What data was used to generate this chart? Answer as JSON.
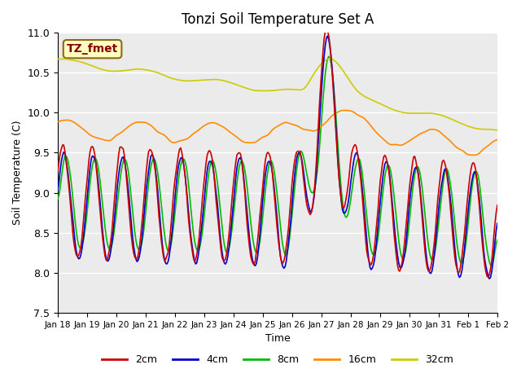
{
  "title": "Tonzi Soil Temperature Set A",
  "xlabel": "Time",
  "ylabel": "Soil Temperature (C)",
  "ylim": [
    7.5,
    11.0
  ],
  "annotation_text": "TZ_fmet",
  "annotation_color": "#8B0000",
  "annotation_bg": "#FFFFC0",
  "annotation_border": "#8B6914",
  "legend_entries": [
    "2cm",
    "4cm",
    "8cm",
    "16cm",
    "32cm"
  ],
  "line_colors": [
    "#CC0000",
    "#0000CC",
    "#00BB00",
    "#FF8C00",
    "#CCCC00"
  ],
  "background_plot": "#EBEBEB",
  "grid_color": "#FFFFFF",
  "xtick_labels": [
    "Jan 18",
    "Jan 19",
    "Jan 20",
    "Jan 21",
    "Jan 22",
    "Jan 23",
    "Jan 24",
    "Jan 25",
    "Jan 26",
    "Jan 27",
    "Jan 28",
    "Jan 29",
    "Jan 30",
    "Jan 31",
    "Feb 1",
    "Feb 2"
  ],
  "num_points": 384
}
